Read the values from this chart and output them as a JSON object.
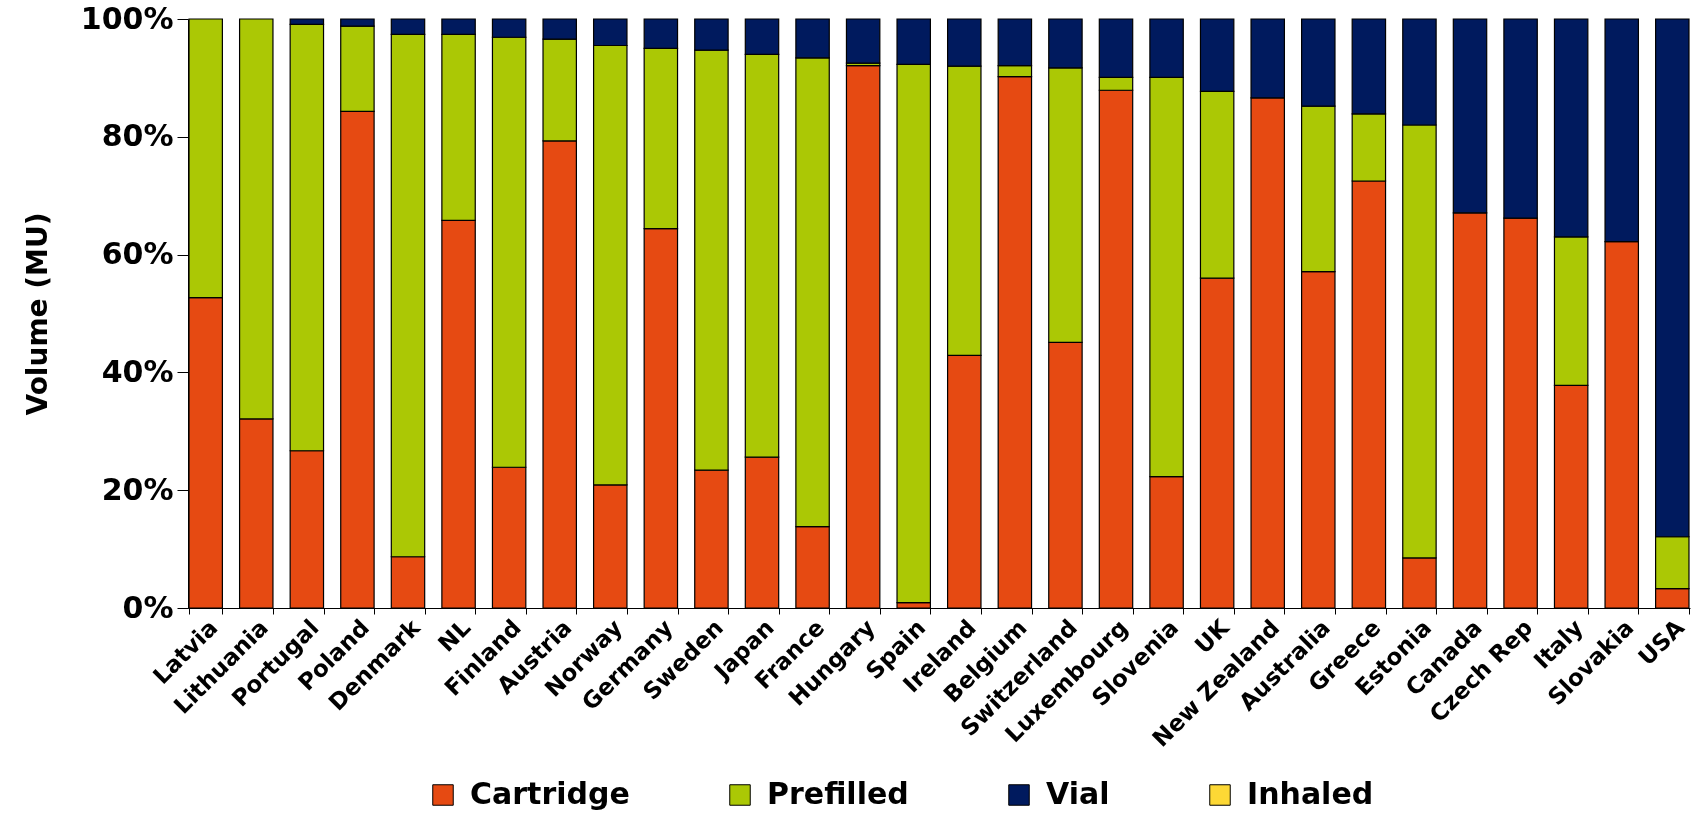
{
  "chart_data": {
    "type": "bar",
    "ylabel": "Volume (MU)",
    "stacked": true,
    "legend": "bottom",
    "categories": [
      "Latvia",
      "Lithuania",
      "Portugal",
      "Poland",
      "Denmark",
      "NL",
      "Finland",
      "Austria",
      "Norway",
      "Germany",
      "Sweden",
      "Japan",
      "France",
      "Hungary",
      "Spain",
      "Ireland",
      "Belgium",
      "Switzerland",
      "Luxembourg",
      "Slovenia",
      "UK",
      "New Zealand",
      "Australia",
      "Greece",
      "Estonia",
      "Canada",
      "Czech Rep",
      "Italy",
      "Slovakia",
      "USA"
    ],
    "series": [
      {
        "name": "Cartridge",
        "color": "#e64a12",
        "values": [
          52.7,
          32.1,
          26.7,
          84.3,
          8.7,
          65.8,
          23.9,
          79.3,
          20.9,
          64.4,
          23.4,
          25.6,
          13.8,
          92.1,
          0.9,
          42.9,
          90.2,
          45.1,
          87.9,
          22.3,
          56.0,
          86.6,
          57.1,
          72.5,
          8.5,
          67.1,
          66.2,
          37.8,
          62.2,
          3.3
        ]
      },
      {
        "name": "Prefilled",
        "color": "#abc805",
        "values": [
          47.3,
          67.9,
          72.4,
          14.5,
          88.7,
          31.6,
          73.0,
          17.3,
          74.6,
          30.6,
          71.3,
          68.4,
          79.6,
          0.4,
          91.4,
          49.1,
          1.9,
          46.6,
          2.2,
          67.8,
          31.7,
          null,
          28.1,
          11.4,
          73.5,
          null,
          null,
          25.2,
          null,
          8.8
        ]
      },
      {
        "name": "Vial",
        "color": "#001a5e",
        "values": [
          null,
          null,
          0.9,
          1.2,
          2.6,
          2.6,
          3.1,
          3.4,
          4.5,
          5.0,
          5.3,
          6.0,
          6.6,
          7.5,
          7.7,
          8.0,
          7.9,
          8.3,
          9.9,
          9.9,
          12.3,
          13.4,
          14.8,
          16.1,
          18.0,
          32.9,
          33.8,
          37.0,
          37.8,
          87.9
        ]
      },
      {
        "name": "Inhaled",
        "color": "#fdd835",
        "values": [
          null,
          null,
          null,
          null,
          null,
          null,
          null,
          null,
          null,
          null,
          null,
          null,
          null,
          null,
          null,
          null,
          null,
          null,
          null,
          null,
          null,
          null,
          null,
          null,
          null,
          null,
          null,
          null,
          null,
          null
        ]
      }
    ],
    "ylim": [
      0,
      100
    ],
    "yticks": [
      {
        "value": 0,
        "label": "0%"
      },
      {
        "value": 20,
        "label": "20%"
      },
      {
        "value": 40,
        "label": "40%"
      },
      {
        "value": 60,
        "label": "60%"
      },
      {
        "value": 80,
        "label": "80%"
      },
      {
        "value": 100,
        "label": "100%"
      }
    ]
  }
}
